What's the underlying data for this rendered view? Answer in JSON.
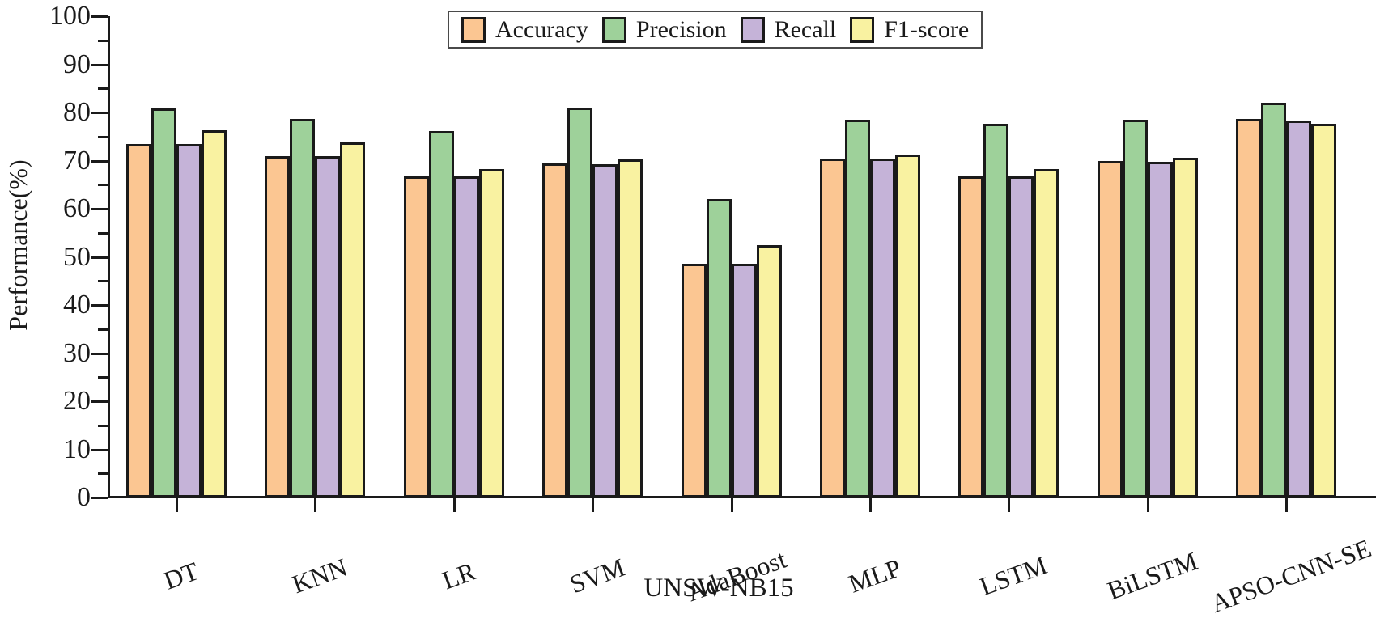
{
  "chart_data": {
    "type": "bar",
    "title": "",
    "xlabel": "UNSW-NB15",
    "ylabel": "Performance(%)",
    "ylim": [
      0,
      100
    ],
    "yticks": [
      0,
      10,
      20,
      30,
      40,
      50,
      60,
      70,
      80,
      90,
      100
    ],
    "minor_tick_step": 5,
    "grid": false,
    "legend_position": "top-center",
    "categories": [
      "DT",
      "KNN",
      "LR",
      "SVM",
      "AdaBoost",
      "MLP",
      "LSTM",
      "BiLSTM",
      "APSO-CNN-SE"
    ],
    "series": [
      {
        "name": "Accuracy",
        "color": "#FBC692",
        "values": [
          73.4,
          71.0,
          66.8,
          69.4,
          48.6,
          70.4,
          66.8,
          69.9,
          78.6
        ]
      },
      {
        "name": "Precision",
        "color": "#9ED19A",
        "values": [
          80.9,
          78.7,
          76.1,
          81.0,
          62.0,
          78.5,
          77.7,
          78.5,
          82.0
        ]
      },
      {
        "name": "Recall",
        "color": "#C5B3D8",
        "values": [
          73.4,
          71.0,
          66.7,
          69.3,
          48.5,
          70.4,
          66.7,
          69.8,
          78.4
        ]
      },
      {
        "name": "F1-score",
        "color": "#F9F2A1",
        "values": [
          76.3,
          73.8,
          68.3,
          70.2,
          52.4,
          71.3,
          68.2,
          70.6,
          77.7
        ]
      }
    ],
    "bar_edge_color": "#1a1a1a",
    "axis_color": "#1a1a1a"
  }
}
